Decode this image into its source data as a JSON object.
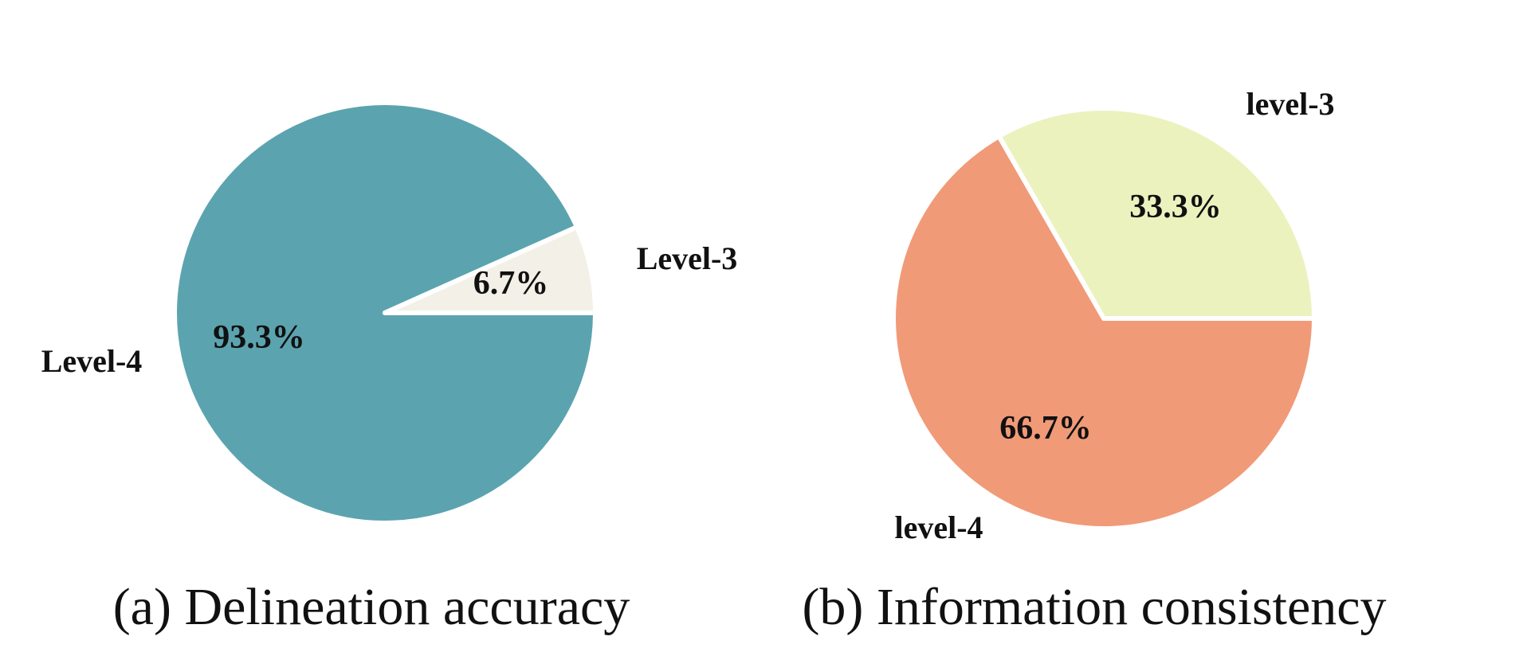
{
  "chart_data": [
    {
      "type": "pie",
      "caption": "(a) Delineation accuracy",
      "slices": [
        {
          "label": "Level-4",
          "value": 93.3,
          "pct_label": "93.3%",
          "color": "#5BA4AF"
        },
        {
          "label": "Level-3",
          "value": 6.7,
          "pct_label": "6.7%",
          "color": "#F3F0E8"
        }
      ]
    },
    {
      "type": "pie",
      "caption": "(b) Information consistency",
      "slices": [
        {
          "label": "level-4",
          "value": 66.7,
          "pct_label": "66.7%",
          "color": "#F19A78"
        },
        {
          "label": "level-3",
          "value": 33.3,
          "pct_label": "33.3%",
          "color": "#ECF2BE"
        }
      ]
    }
  ]
}
